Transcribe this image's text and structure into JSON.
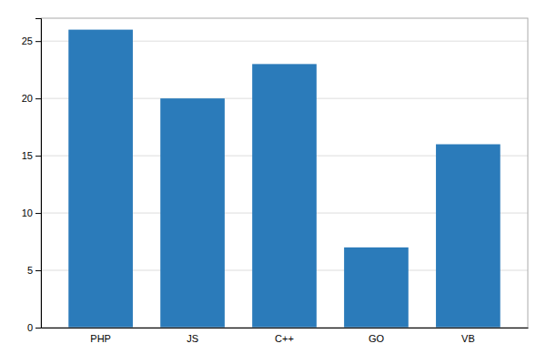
{
  "chart_data": {
    "type": "bar",
    "categories": [
      "PHP",
      "JS",
      "C++",
      "GO",
      "VB"
    ],
    "values": [
      26,
      20,
      23,
      7,
      16
    ],
    "color": "#2b7bba",
    "ylim": [
      0,
      27
    ],
    "yticks": [
      0,
      5,
      10,
      15,
      20,
      25
    ],
    "grid": true
  }
}
